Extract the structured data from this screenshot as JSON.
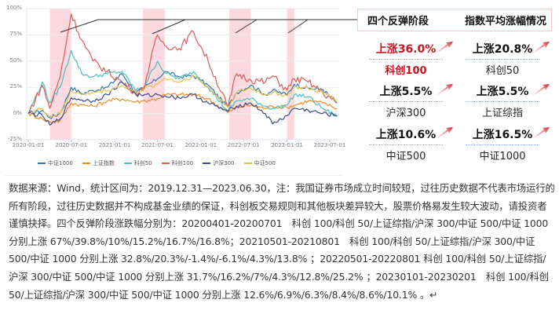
{
  "chart_data": {
    "type": "line",
    "title": "",
    "xlabel": "",
    "ylabel": "",
    "ylim": [
      -0.25,
      1.0
    ],
    "y_ticks": [
      "100%",
      "75%",
      "50%",
      "25%",
      "0%",
      "-25%"
    ],
    "x_ticks": [
      "2020-01-01",
      "2020-07-01",
      "2021-01-01",
      "2021-07-01",
      "2022-01-01",
      "2022-07-01",
      "2023-01-01",
      "2023-07-01"
    ],
    "grid": true,
    "legend_position": "bottom",
    "shaded_periods": [
      {
        "label": "20200401-20200701",
        "start": "2020-04-01",
        "end": "2020-07-01"
      },
      {
        "label": "20210501-20210801",
        "start": "2021-05-01",
        "end": "2021-08-01"
      },
      {
        "label": "20220501-20220801",
        "start": "2022-05-01",
        "end": "2022-08-01"
      },
      {
        "label": "20230101-20230201",
        "start": "2023-01-01",
        "end": "2023-02-01"
      }
    ],
    "x": [
      "2020-01-01",
      "2020-03-01",
      "2020-04-01",
      "2020-05-15",
      "2020-07-01",
      "2020-08-15",
      "2020-10-01",
      "2020-12-01",
      "2021-02-01",
      "2021-04-01",
      "2021-05-01",
      "2021-07-01",
      "2021-08-01",
      "2021-10-01",
      "2021-12-01",
      "2022-02-01",
      "2022-04-26",
      "2022-06-01",
      "2022-08-01",
      "2022-10-01",
      "2022-11-01",
      "2023-01-01",
      "2023-02-01",
      "2023-04-01",
      "2023-06-01",
      "2023-08-01"
    ],
    "series": [
      {
        "name": "中证1000",
        "color": "#2f78b5",
        "values": [
          0.0,
          0.03,
          -0.04,
          0.0,
          0.25,
          0.19,
          0.22,
          0.25,
          0.38,
          0.2,
          0.24,
          0.33,
          0.4,
          0.35,
          0.36,
          0.27,
          0.06,
          0.2,
          0.27,
          0.18,
          0.22,
          0.18,
          0.28,
          0.24,
          0.23,
          0.1
        ]
      },
      {
        "name": "上证指数",
        "color": "#f08a24",
        "values": [
          0.0,
          -0.05,
          -0.08,
          -0.07,
          0.1,
          0.08,
          0.07,
          0.12,
          0.14,
          0.11,
          0.12,
          0.14,
          0.18,
          0.18,
          0.18,
          0.14,
          0.01,
          0.06,
          0.08,
          0.05,
          0.07,
          0.06,
          0.08,
          0.12,
          0.1,
          0.05
        ]
      },
      {
        "name": "科创50",
        "color": "#4bbfbf",
        "values": [
          0.0,
          0.3,
          0.1,
          0.25,
          0.6,
          0.38,
          0.35,
          0.38,
          0.4,
          0.22,
          0.24,
          0.5,
          0.39,
          0.33,
          0.4,
          0.25,
          0.02,
          0.12,
          0.14,
          0.07,
          0.05,
          0.08,
          0.18,
          0.16,
          0.05,
          -0.03
        ]
      },
      {
        "name": "科创100",
        "color": "#e05a5a",
        "values": [
          0.0,
          0.27,
          0.05,
          0.35,
          0.95,
          0.7,
          0.5,
          0.4,
          0.3,
          0.2,
          0.22,
          0.75,
          0.65,
          0.62,
          0.78,
          0.5,
          0.06,
          0.38,
          0.32,
          0.3,
          0.36,
          0.22,
          0.33,
          0.3,
          0.2,
          0.1
        ]
      },
      {
        "name": "沪深300",
        "color": "#3a4a8c",
        "values": [
          0.0,
          -0.02,
          -0.11,
          -0.05,
          0.15,
          0.13,
          0.12,
          0.18,
          0.3,
          0.18,
          0.17,
          0.18,
          0.17,
          0.15,
          0.18,
          0.1,
          0.02,
          0.07,
          0.1,
          0.0,
          -0.1,
          -0.02,
          0.05,
          0.03,
          0.0,
          -0.02
        ]
      },
      {
        "name": "中证500",
        "color": "#e8c24a",
        "values": [
          0.0,
          0.05,
          -0.03,
          0.0,
          0.22,
          0.18,
          0.2,
          0.22,
          0.27,
          0.2,
          0.23,
          0.28,
          0.34,
          0.3,
          0.36,
          0.25,
          0.06,
          0.2,
          0.24,
          0.18,
          0.2,
          0.17,
          0.25,
          0.24,
          0.2,
          0.13
        ]
      }
    ]
  },
  "panel": {
    "header_left": "四个反弹阶段",
    "header_right": "指数平均涨幅情况",
    "items": [
      {
        "value": "上涨36.0%",
        "name": "科创100",
        "highlight": true
      },
      {
        "value": "上涨20.8%",
        "name": "科创50",
        "highlight": false
      },
      {
        "value": "上涨5.5%",
        "name": "沪深300",
        "highlight": false
      },
      {
        "value": "上涨5.5%",
        "name": "上证综指",
        "highlight": false
      },
      {
        "value": "上涨10.6%",
        "name": "中证500",
        "highlight": false
      },
      {
        "value": "上涨16.5%",
        "name": "中证1000",
        "highlight": false
      }
    ]
  },
  "note": {
    "text": "数据来源：Wind，统计区间为：2019.12.31—2023.06.30，注：我国证券市场成立时间较短，过往历史数据不代表市场运行的所有阶段，过往历史数据并不构成基金业绩的保证，科创板交易规则和其他板块差异较大，股票价格易发生较大波动，请投资者谨慎抉择。四个反弹阶段涨跌幅分别为：20200401-20200701　科创 100/科创 50/上证综指/沪深 300/中证 500/中证 1000 分别上涨 67%/39.8%/10%/15.2%/16.7%/16.8%；20210501-20210801　科创 100/科创 50/上证综指/沪深 300/中证 500/中证 1000 分别上涨 32.8%/20.3%/-1.4%/-6.1%/4.3%/13.8% ；20220501-20220801 科创 100/科创 50/上证综指/沪深 300/中证 500/中证 1000 分别上涨 31.7%/16.2%/7%/4.3%/12.8%/25.2% ；20230101-20230201　科创 100/科创 50/上证综指/沪深 300/中证 500/中证 1000 分别上涨 12.6%/6.9%/6.3%/8.4%/8.6%/10.1% 。↵"
  }
}
